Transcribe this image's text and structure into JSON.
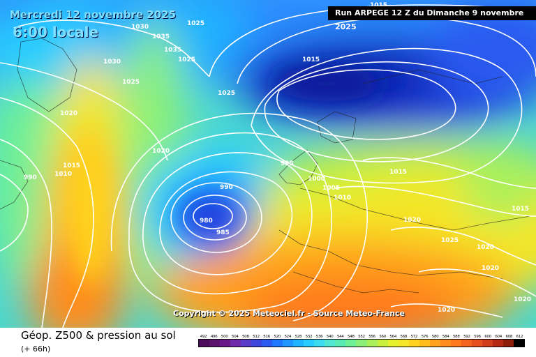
{
  "header": {
    "date": "Mercredi 12 novembre 2025",
    "time": "6:00 locale",
    "run": "Run ARPEGE 12 Z du Dimanche 9 novembre 2025"
  },
  "copyright": "Copyright © 2025 Meteociel.fr - Source Meteo-France",
  "legend": {
    "title": "Géop. Z500 & pression au sol",
    "subtitle": "(+ 66h)",
    "scale_values": [
      "492",
      "496",
      "500",
      "504",
      "508",
      "512",
      "516",
      "520",
      "524",
      "528",
      "532",
      "536",
      "540",
      "544",
      "548",
      "552",
      "556",
      "560",
      "564",
      "568",
      "572",
      "576",
      "580",
      "584",
      "588",
      "592",
      "596",
      "600",
      "604",
      "608",
      "612"
    ],
    "scale_colors": [
      "#4b0a5a",
      "#5a126e",
      "#6a1a88",
      "#6e2aa8",
      "#5a3cc8",
      "#3c46dc",
      "#2a5af0",
      "#1e78ff",
      "#1e96ff",
      "#1eb4ff",
      "#28ccff",
      "#3cdcf0",
      "#50e6d2",
      "#5aebb4",
      "#6ef096",
      "#8cf078",
      "#aaf05a",
      "#c8f03c",
      "#e6f02d",
      "#f5e628",
      "#ffd21e",
      "#ffbe1e",
      "#ffa01e",
      "#ff8c1e",
      "#ff781e",
      "#f5641e",
      "#e6501e",
      "#d23c1e",
      "#b42814",
      "#8c1e0a",
      "#000000"
    ]
  },
  "isobar_labels": [
    "1015",
    "1025",
    "1030",
    "1035",
    "1025",
    "1020",
    "1010",
    "1005",
    "1000",
    "995",
    "990",
    "985",
    "980",
    "1015",
    "1020",
    "1025",
    "1020",
    "1015",
    "1020",
    "1030",
    "1035",
    "1025",
    "1020",
    "1015",
    "1010",
    "990",
    "1015",
    "1020",
    "1025",
    "1020"
  ]
}
